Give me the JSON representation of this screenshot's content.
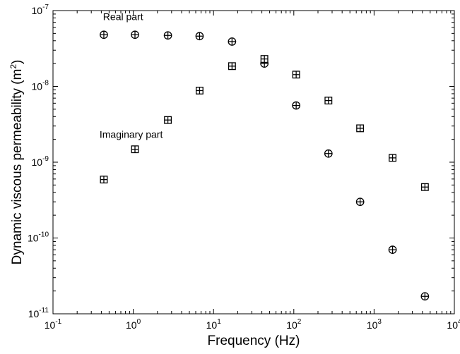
{
  "chart_data": {
    "type": "scatter",
    "xlabel": "Frequency (Hz)",
    "ylabel_main": "Dynamic viscous permeability (m",
    "ylabel_sup": "2",
    "ylabel_end": ")",
    "xscale": "log",
    "yscale": "log",
    "xlim": [
      0.1,
      10000
    ],
    "ylim": [
      1e-11,
      1e-07
    ],
    "grid": false,
    "x_ticks": [
      {
        "value": 0.1,
        "base": "10",
        "exp": "-1"
      },
      {
        "value": 1,
        "base": "10",
        "exp": "0"
      },
      {
        "value": 10,
        "base": "10",
        "exp": "1"
      },
      {
        "value": 100,
        "base": "10",
        "exp": "2"
      },
      {
        "value": 1000,
        "base": "10",
        "exp": "3"
      },
      {
        "value": 10000,
        "base": "10",
        "exp": "4"
      }
    ],
    "y_ticks": [
      {
        "value": 1e-11,
        "base": "10",
        "exp": "-11"
      },
      {
        "value": 1e-10,
        "base": "10",
        "exp": "-10"
      },
      {
        "value": 1e-09,
        "base": "10",
        "exp": "-9"
      },
      {
        "value": 1e-08,
        "base": "10",
        "exp": "-8"
      },
      {
        "value": 1e-07,
        "base": "10",
        "exp": "-7"
      }
    ],
    "series": [
      {
        "marker": "circle-plus",
        "x": [
          0.43,
          1.05,
          2.7,
          6.7,
          17,
          43,
          107,
          270,
          670,
          1700,
          4300
        ],
        "y": [
          4.8e-08,
          4.8e-08,
          4.7e-08,
          4.6e-08,
          3.9e-08,
          2e-08,
          5.6e-09,
          1.3e-09,
          3e-10,
          7e-11,
          1.7e-11
        ]
      },
      {
        "marker": "square-plus",
        "x": [
          0.43,
          1.05,
          2.7,
          6.7,
          17,
          43,
          107,
          270,
          670,
          1700,
          4300
        ],
        "y": [
          5.9e-10,
          1.48e-09,
          3.6e-09,
          8.8e-09,
          1.85e-08,
          2.3e-08,
          1.43e-08,
          6.5e-09,
          2.8e-09,
          1.14e-09,
          4.7e-10
        ]
      }
    ],
    "annotations": [
      {
        "text": "Real part",
        "x": 0.42,
        "y": 7.5e-08
      },
      {
        "text": "Imaginary part",
        "x": 0.38,
        "y": 2.1e-09
      }
    ]
  }
}
